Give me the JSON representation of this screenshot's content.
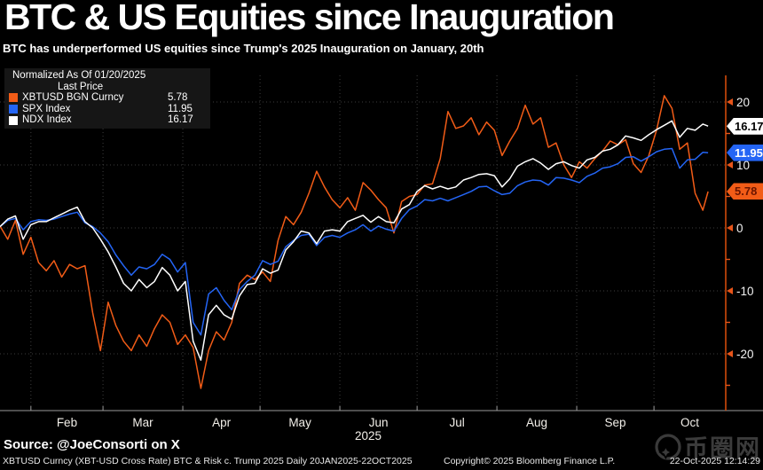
{
  "header": {
    "title": "BTC & US Equities since Inauguration",
    "subtitle": "BTC has underperformed US equities since Trump's 2025 Inauguration on January, 20th"
  },
  "legend": {
    "normalized": "Normalized As Of 01/20/2025",
    "last_price_label": "Last Price",
    "rows": [
      {
        "label": "XBTUSD BGN Curncy",
        "value": "5.78",
        "color": "#f25c17"
      },
      {
        "label": "SPX Index",
        "value": "11.95",
        "color": "#2465f5"
      },
      {
        "label": "NDX Index",
        "value": "16.17",
        "color": "#ffffff"
      }
    ]
  },
  "footer": {
    "source": "Source: @JoeConsorti on X",
    "left": "XBTUSD Curncy (XBT-USD Cross Rate) BTC & Risk c. Trump 2025 Daily 20JAN2025-22OCT2025",
    "copyright": "Copyright© 2025 Bloomberg Finance L.P.",
    "timestamp": "22-Oct-2025 12:14:29"
  },
  "watermark": {
    "text": "币圈网"
  },
  "colors": {
    "background": "#000000",
    "axis": "#d14a0a",
    "tick": "#e8551a",
    "grid": "#3d3d3d",
    "btc": "#f25c17",
    "spx": "#2465f5",
    "ndx": "#ffffff"
  },
  "chart_data": {
    "type": "line",
    "title": "BTC & US Equities since Inauguration",
    "normalized_as_of": "01/20/2025",
    "x_unit": "days since 2025-01-20",
    "x_year_label": "2025",
    "grid": "dotted",
    "legend_position": "top-left",
    "ylim_visible": [
      -29,
      24
    ],
    "y_ticks": [
      20,
      10,
      0,
      -10,
      -20
    ],
    "y_minor_ticks": [
      15,
      5,
      -5,
      -15,
      -25
    ],
    "x_ticks": [
      {
        "label": "Feb",
        "day": 12
      },
      {
        "label": "Mar",
        "day": 40
      },
      {
        "label": "Apr",
        "day": 71
      },
      {
        "label": "May",
        "day": 101
      },
      {
        "label": "Jun",
        "day": 132
      },
      {
        "label": "Jul",
        "day": 162
      },
      {
        "label": "Aug",
        "day": 193
      },
      {
        "label": "Sep",
        "day": 224
      },
      {
        "label": "Oct",
        "day": 254
      }
    ],
    "x_end_day": 275,
    "days": [
      0,
      3,
      6,
      9,
      12,
      15,
      18,
      21,
      24,
      27,
      30,
      33,
      36,
      39,
      42,
      45,
      48,
      51,
      54,
      57,
      60,
      63,
      66,
      69,
      72,
      75,
      78,
      81,
      84,
      87,
      90,
      93,
      96,
      99,
      102,
      105,
      108,
      111,
      114,
      117,
      120,
      123,
      126,
      129,
      132,
      135,
      138,
      141,
      144,
      147,
      150,
      153,
      156,
      159,
      162,
      165,
      168,
      171,
      174,
      177,
      180,
      183,
      186,
      189,
      192,
      195,
      198,
      201,
      204,
      207,
      210,
      213,
      216,
      219,
      222,
      225,
      228,
      231,
      234,
      237,
      240,
      243,
      246,
      249,
      252,
      255,
      258,
      261,
      264,
      267,
      270,
      273,
      275
    ],
    "series": [
      {
        "id": "xbtusd",
        "name": "XBTUSD BGN Curncy",
        "last_price": 5.78,
        "color": "#f25c17",
        "tag_bg": "#f25c17",
        "tag_fg": "#6b1500",
        "width": 1.5,
        "values": [
          0.3,
          -1.8,
          1.2,
          -4.2,
          -1.5,
          -5.5,
          -6.8,
          -5.2,
          -7.8,
          -5.8,
          -6.5,
          -6.0,
          -13.5,
          -19.5,
          -11.8,
          -15.5,
          -18.0,
          -19.5,
          -17.0,
          -18.8,
          -16.0,
          -13.8,
          -15.0,
          -18.5,
          -17.0,
          -19.0,
          -25.5,
          -19.5,
          -16.5,
          -17.8,
          -15.0,
          -8.8,
          -7.5,
          -8.2,
          -7.0,
          -8.5,
          -2.0,
          1.8,
          0.5,
          2.5,
          5.5,
          9.0,
          6.5,
          4.5,
          3.2,
          4.8,
          2.8,
          7.2,
          6.0,
          4.5,
          3.2,
          -0.8,
          4.2,
          5.0,
          5.3,
          6.8,
          7.0,
          11.0,
          18.5,
          15.8,
          16.2,
          17.5,
          14.8,
          16.8,
          15.5,
          11.5,
          13.8,
          15.8,
          19.5,
          16.5,
          17.5,
          12.8,
          13.5,
          10.0,
          8.0,
          10.5,
          9.5,
          11.0,
          12.2,
          13.8,
          13.2,
          14.0,
          10.2,
          8.8,
          11.5,
          15.5,
          21.0,
          19.0,
          12.5,
          13.5,
          5.5,
          2.8,
          5.78
        ]
      },
      {
        "id": "spx",
        "name": "SPX Index",
        "last_price": 11.95,
        "color": "#2465f5",
        "tag_bg": "#2465f5",
        "tag_fg": "#ffffff",
        "width": 1.5,
        "values": [
          0.2,
          1.2,
          1.5,
          -0.3,
          1.0,
          1.3,
          1.2,
          1.4,
          1.8,
          2.2,
          2.5,
          0.8,
          0.2,
          -0.8,
          -2.2,
          -4.3,
          -6.0,
          -7.5,
          -6.2,
          -6.5,
          -5.8,
          -4.2,
          -5.0,
          -7.0,
          -5.5,
          -15.0,
          -17.0,
          -10.5,
          -9.5,
          -11.5,
          -13.0,
          -9.8,
          -8.5,
          -7.5,
          -5.2,
          -5.8,
          -5.3,
          -3.0,
          -2.0,
          -1.2,
          -1.0,
          -2.8,
          -1.5,
          -1.2,
          -1.5,
          -0.8,
          -0.3,
          0.5,
          -0.5,
          0.3,
          -0.2,
          -0.5,
          1.5,
          2.9,
          3.5,
          4.5,
          4.3,
          4.7,
          4.3,
          4.8,
          5.3,
          5.8,
          6.5,
          6.6,
          5.9,
          5.3,
          5.5,
          6.7,
          7.3,
          7.6,
          7.5,
          6.8,
          8.0,
          7.9,
          7.6,
          7.2,
          8.2,
          8.7,
          9.5,
          9.7,
          10.2,
          11.2,
          11.3,
          10.6,
          11.3,
          12.1,
          12.5,
          12.6,
          9.5,
          10.8,
          10.9,
          12.0,
          11.95
        ]
      },
      {
        "id": "ndx",
        "name": "NDX Index",
        "last_price": 16.17,
        "color": "#ffffff",
        "tag_bg": "#ffffff",
        "tag_fg": "#000000",
        "width": 1.5,
        "values": [
          0.2,
          1.4,
          1.9,
          -1.8,
          0.5,
          1.0,
          1.0,
          1.6,
          2.2,
          2.8,
          3.3,
          1.0,
          0.0,
          -1.8,
          -3.8,
          -6.2,
          -8.8,
          -10.0,
          -8.2,
          -9.5,
          -8.5,
          -6.3,
          -7.5,
          -10.0,
          -8.5,
          -18.0,
          -21.0,
          -13.8,
          -12.3,
          -13.8,
          -14.5,
          -10.8,
          -9.0,
          -8.8,
          -6.5,
          -7.2,
          -6.7,
          -3.5,
          -2.2,
          -0.5,
          -0.8,
          -2.5,
          -0.5,
          -0.3,
          -0.5,
          1.0,
          1.5,
          2.0,
          0.9,
          1.8,
          1.0,
          0.8,
          3.0,
          3.7,
          5.8,
          6.7,
          6.2,
          6.6,
          6.2,
          6.5,
          7.6,
          8.0,
          8.5,
          8.6,
          8.3,
          6.5,
          7.8,
          9.8,
          10.5,
          11.0,
          10.3,
          9.3,
          10.2,
          10.5,
          9.9,
          9.5,
          10.8,
          11.2,
          12.2,
          12.5,
          13.2,
          14.6,
          14.3,
          13.9,
          14.8,
          15.6,
          16.3,
          17.0,
          14.4,
          15.8,
          15.5,
          16.5,
          16.17
        ]
      }
    ]
  }
}
